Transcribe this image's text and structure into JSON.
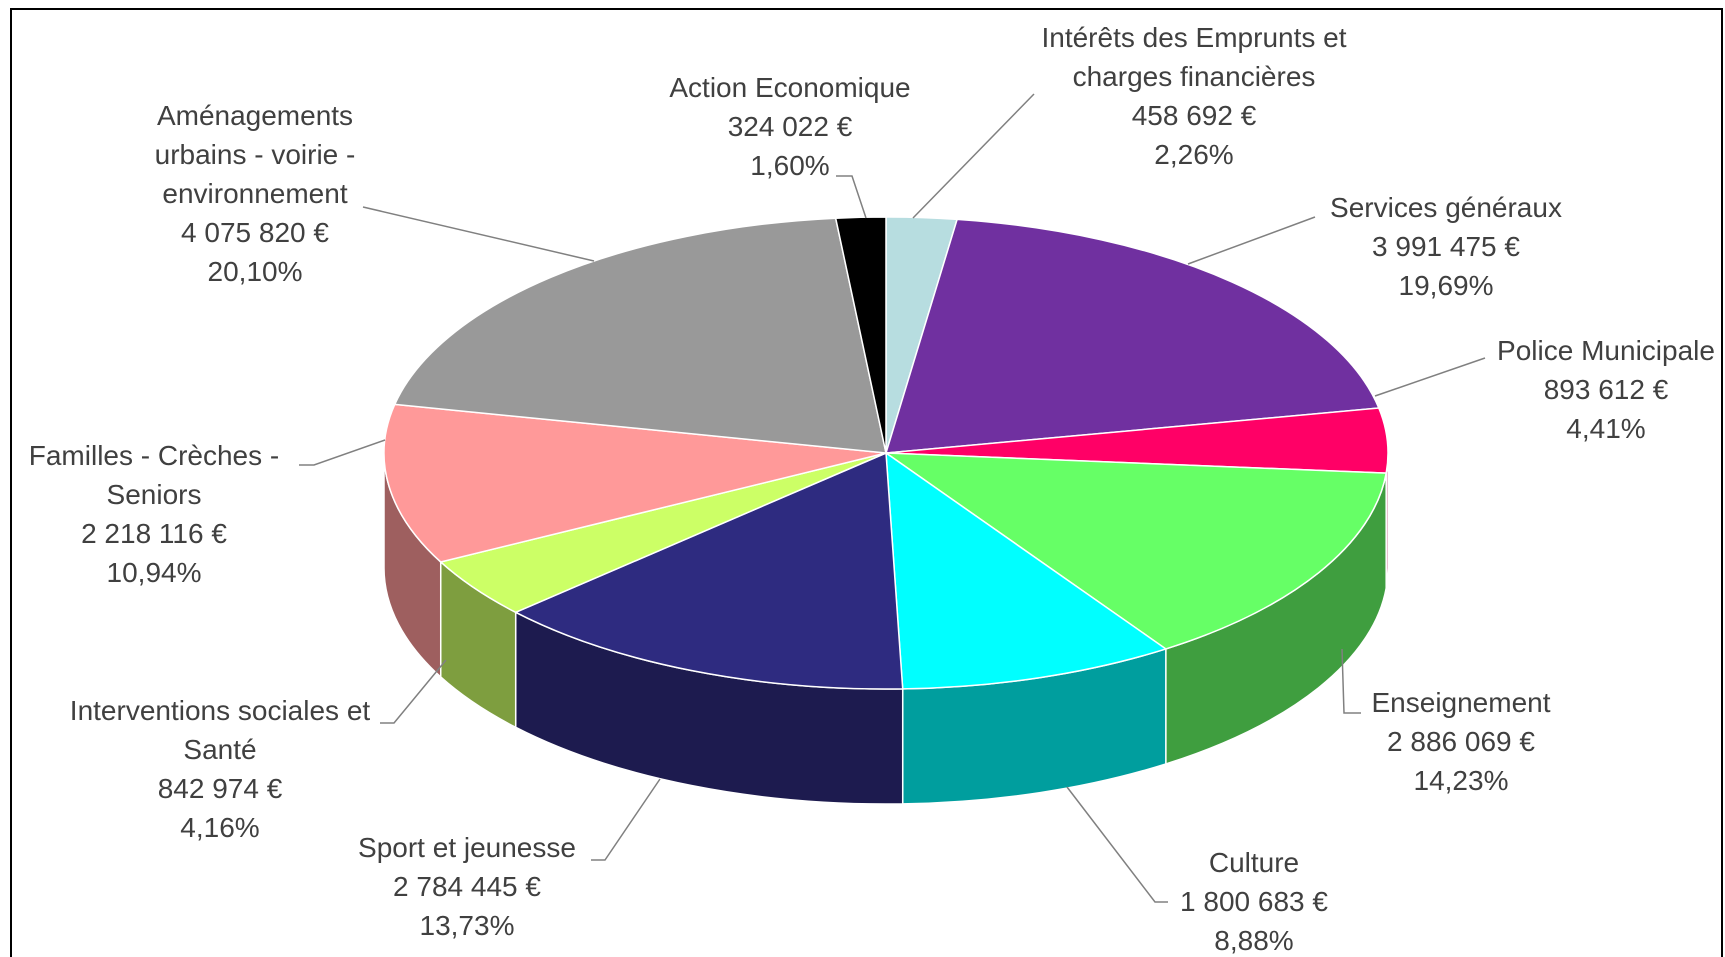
{
  "chart_data": {
    "type": "pie",
    "categories": [
      "Intérêts des Emprunts et charges financières",
      "Services généraux",
      "Police Municipale",
      "Enseignement",
      "Culture",
      "Sport et jeunesse",
      "Interventions sociales et Santé",
      "Familles - Crèches - Seniors",
      "Aménagements urbains - voirie - environnement",
      "Action Economique"
    ],
    "values": [
      458692,
      3991475,
      893612,
      2886069,
      1800683,
      2784445,
      842974,
      2218116,
      4075820,
      324022
    ],
    "value_labels": [
      "458 692 €",
      "3 991 475 €",
      "893 612 €",
      "2 886 069 €",
      "1 800 683 €",
      "2 784 445 €",
      "842 974 €",
      "2 218 116 €",
      "4 075 820 €",
      "324 022 €"
    ],
    "percentages": [
      2.26,
      19.69,
      4.41,
      14.23,
      8.88,
      13.73,
      4.16,
      10.94,
      20.1,
      1.6
    ],
    "percentage_labels": [
      "2,26%",
      "19,69%",
      "4,41%",
      "14,23%",
      "8,88%",
      "13,73%",
      "4,16%",
      "10,94%",
      "20,10%",
      "1,60%"
    ],
    "colors": [
      "#b7dde0",
      "#7030a0",
      "#ff0066",
      "#66ff66",
      "#00ffff",
      "#2e2b80",
      "#ccff66",
      "#ff9999",
      "#999999",
      "#000000"
    ]
  }
}
